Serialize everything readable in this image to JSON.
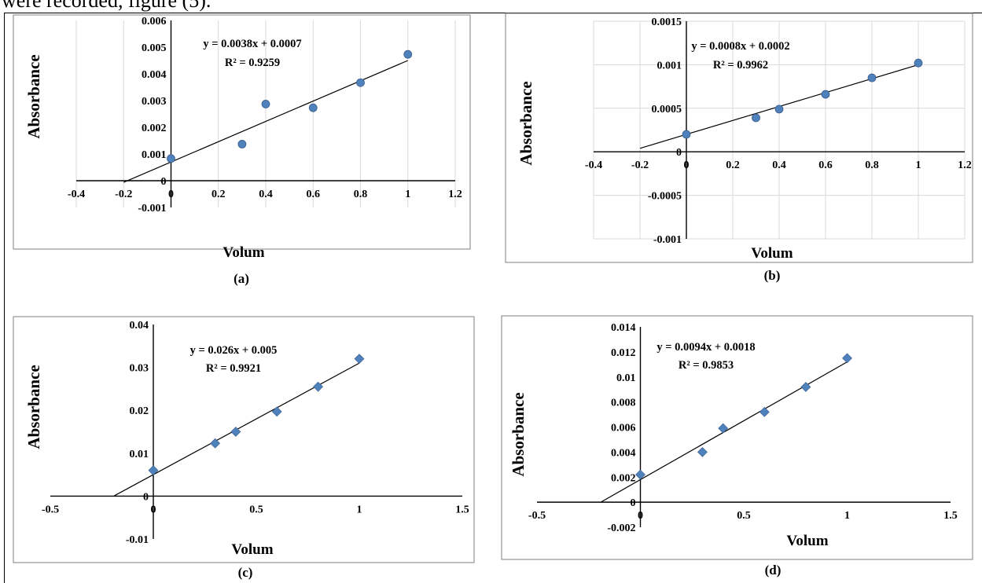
{
  "page_caption": "were recorded, figure (5).",
  "chart_data": [
    {
      "panel": "(a)",
      "type": "scatter",
      "marker": "circle",
      "ylabel": "Absorbance",
      "xlabel": "Volum",
      "xlim": [
        -0.4,
        1.2
      ],
      "ylim": [
        -0.001,
        0.006
      ],
      "x_ticks": [
        "-0.4",
        "-0.2",
        "0",
        "0.2",
        "0.4",
        "0.6",
        "0.8",
        "1",
        "1.2"
      ],
      "y_ticks": [
        "-0.001",
        "0",
        "0.001",
        "0.002",
        "0.003",
        "0.004",
        "0.005",
        "0.006"
      ],
      "series": [
        {
          "x": [
            0,
            0.3,
            0.4,
            0.6,
            0.8,
            1.0
          ],
          "y": [
            0.00083,
            0.00137,
            0.00287,
            0.00273,
            0.00367,
            0.00473
          ]
        }
      ],
      "trendline": {
        "slope": 0.0038,
        "intercept": 0.0007,
        "x_from": -0.2,
        "x_to": 1.0
      },
      "equation": "y = 0.0038x + 0.0007",
      "r2": "R² = 0.9259",
      "grid": "vertical"
    },
    {
      "panel": "(b)",
      "type": "scatter",
      "marker": "circle",
      "ylabel": "Absorbance",
      "xlabel": "Volum",
      "xlim": [
        -0.4,
        1.2
      ],
      "ylim": [
        -0.001,
        0.0015
      ],
      "x_ticks": [
        "-0.4",
        "-0.2",
        "0",
        "0.2",
        "0.4",
        "0.6",
        "0.8",
        "1",
        "1.2"
      ],
      "y_ticks": [
        "-0.001",
        "-0.0005",
        "0",
        "0.0005",
        "0.001",
        "0.0015"
      ],
      "series": [
        {
          "x": [
            0,
            0.3,
            0.4,
            0.6,
            0.8,
            1.0
          ],
          "y": [
            0.0002,
            0.00039,
            0.00049,
            0.00066,
            0.00085,
            0.00102
          ]
        }
      ],
      "trendline": {
        "slope": 0.0008,
        "intercept": 0.0002,
        "x_from": -0.2,
        "x_to": 1.0
      },
      "equation": "y = 0.0008x + 0.0002",
      "r2": "R² = 0.9962",
      "grid": "both"
    },
    {
      "panel": "(c)",
      "type": "scatter",
      "marker": "diamond",
      "ylabel": "Absorbance",
      "xlabel": "Volum",
      "xlim": [
        -0.5,
        1.5
      ],
      "ylim": [
        -0.01,
        0.04
      ],
      "x_ticks": [
        "-0.5",
        "0",
        "0.5",
        "1",
        "1.5"
      ],
      "y_ticks": [
        "-0.01",
        "0",
        "0.01",
        "0.02",
        "0.03",
        "0.04"
      ],
      "series": [
        {
          "x": [
            0,
            0.3,
            0.4,
            0.6,
            0.8,
            1.0
          ],
          "y": [
            0.006,
            0.0123,
            0.015,
            0.0197,
            0.0255,
            0.032
          ]
        }
      ],
      "trendline": {
        "slope": 0.026,
        "intercept": 0.005,
        "x_from": -0.19,
        "x_to": 1.0
      },
      "equation": "y = 0.026x + 0.005",
      "r2": "R² = 0.9921",
      "grid": "none"
    },
    {
      "panel": "(d)",
      "type": "scatter",
      "marker": "diamond",
      "ylabel": "Absorbance",
      "xlabel": "Volum",
      "xlim": [
        -0.5,
        1.5
      ],
      "ylim": [
        -0.002,
        0.014
      ],
      "x_ticks": [
        "-0.5",
        "0",
        "0.5",
        "1",
        "1.5"
      ],
      "y_ticks": [
        "-0.002",
        "0",
        "0.002",
        "0.004",
        "0.006",
        "0.008",
        "0.01",
        "0.012",
        "0.014"
      ],
      "series": [
        {
          "x": [
            0,
            0.3,
            0.4,
            0.6,
            0.8,
            1.0
          ],
          "y": [
            0.0022,
            0.004,
            0.0059,
            0.0072,
            0.0092,
            0.0115
          ]
        }
      ],
      "trendline": {
        "slope": 0.0094,
        "intercept": 0.0018,
        "x_from": -0.19,
        "x_to": 1.0
      },
      "equation": "y = 0.0094x + 0.0018",
      "r2": "R² = 0.9853",
      "grid": "none"
    }
  ],
  "colors": {
    "marker": "#4f81bd",
    "marker_edge": "#385d8a",
    "trendline": "#000000",
    "gridline": "#d9d9d9",
    "frame": "#7f7f7f"
  }
}
